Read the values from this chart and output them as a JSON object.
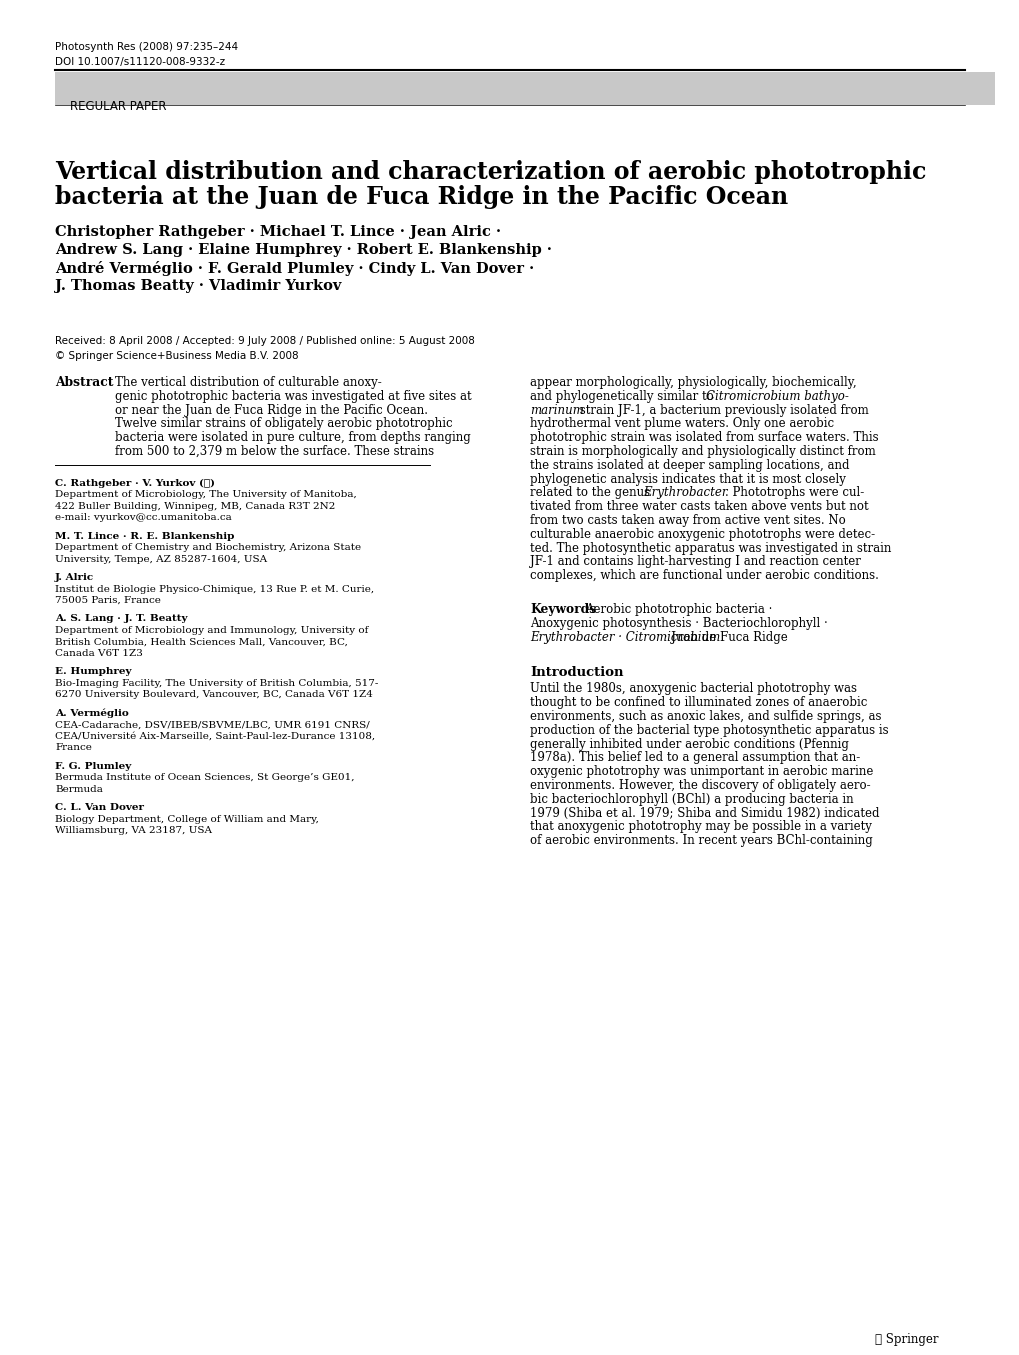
{
  "journal_line1": "Photosynth Res (2008) 97:235–244",
  "journal_line2": "DOI 10.1007/s11120-008-9332-z",
  "section_label": "REGULAR PAPER",
  "title_line1": "Vertical distribution and characterization of aerobic phototrophic",
  "title_line2": "bacteria at the Juan de Fuca Ridge in the Pacific Ocean",
  "authors_line1": "Christopher Rathgeber · Michael T. Lince · Jean Alric ·",
  "authors_line2": "Andrew S. Lang · Elaine Humphrey · Robert E. Blankenship ·",
  "authors_line3": "André Verméglio · F. Gerald Plumley · Cindy L. Van Dover ·",
  "authors_line4": "J. Thomas Beatty · Vladimir Yurkov",
  "received_line": "Received: 8 April 2008 / Accepted: 9 July 2008 / Published online: 5 August 2008",
  "copyright_line": "© Springer Science+Business Media B.V. 2008",
  "abs_left_lines": [
    "The vertical distribution of culturable anoxy-",
    "genic phototrophic bacteria was investigated at five sites at",
    "or near the Juan de Fuca Ridge in the Pacific Ocean.",
    "Twelve similar strains of obligately aerobic phototrophic",
    "bacteria were isolated in pure culture, from depths ranging",
    "from 500 to 2,379 m below the surface. These strains"
  ],
  "abs_right_lines": [
    "appear morphologically, physiologically, biochemically,",
    "and phylogenetically similar to ",
    " bathyo-",
    " strain JF-1, a bacterium previously isolated from",
    "hydrothermal vent plume waters. Only one aerobic",
    "phototrophic strain was isolated from surface waters. This",
    "strain is morphologically and physiologically distinct from",
    "the strains isolated at deeper sampling locations, and",
    "phylogenetic analysis indicates that it is most closely",
    "related to the genus ",
    ". Phototrophs were cul-",
    "tivated from three water casts taken above vents but not",
    "from two casts taken away from active vent sites. No",
    "culturable anaerobic anoxygenic phototrophs were detec-",
    "ted. The photosynthetic apparatus was investigated in strain",
    "JF-1 and contains light-harvesting I and reaction center",
    "complexes, which are functional under aerobic conditions."
  ],
  "fn1_name": "C. Rathgeber · V. Yurkov (✉)",
  "fn1_dept": "Department of Microbiology, The University of Manitoba,",
  "fn1_addr1": "422 Buller Building, Winnipeg, MB, Canada R3T 2N2",
  "fn1_email": "e-mail: vyurkov@cc.umanitoba.ca",
  "fn2_name": "M. T. Lince · R. E. Blankenship",
  "fn2_dept": "Department of Chemistry and Biochemistry, Arizona State",
  "fn2_addr1": "University, Tempe, AZ 85287-1604, USA",
  "fn3_name": "J. Alric",
  "fn3_dept": "Institut de Biologie Physico-Chimique, 13 Rue P. et M. Curie,",
  "fn3_addr1": "75005 Paris, France",
  "fn4_name": "A. S. Lang · J. T. Beatty",
  "fn4_dept": "Department of Microbiology and Immunology, University of",
  "fn4_addr1": "British Columbia, Health Sciences Mall, Vancouver, BC,",
  "fn4_addr2": "Canada V6T 1Z3",
  "fn5_name": "E. Humphrey",
  "fn5_dept": "Bio-Imaging Facility, The University of British Columbia, 517-",
  "fn5_addr1": "6270 University Boulevard, Vancouver, BC, Canada V6T 1Z4",
  "fn6_name": "A. Verméglio",
  "fn6_dept": "CEA-Cadarache, DSV/IBEB/SBVME/LBC, UMR 6191 CNRS/",
  "fn6_addr1": "CEA/Université Aix-Marseille, Saint-Paul-lez-Durance 13108,",
  "fn6_addr2": "France",
  "fn7_name": "F. G. Plumley",
  "fn7_dept": "Bermuda Institute of Ocean Sciences, St George’s GE01,",
  "fn7_addr1": "Bermuda",
  "fn8_name": "C. L. Van Dover",
  "fn8_dept": "Biology Department, College of William and Mary,",
  "fn8_addr1": "Williamsburg, VA 23187, USA",
  "kw_label": "Keywords",
  "kw_line1": "Aerobic phototrophic bacteria ·",
  "kw_line2": "Anoxygenic photosynthesis · Bacteriochlorophyll ·",
  "kw_line3_italic": "Erythrobacter · Citromicrobium",
  "kw_line3_normal": " · Juan de Fuca Ridge",
  "intro_header": "Introduction",
  "intro_lines": [
    "Until the 1980s, anoxygenic bacterial phototrophy was",
    "thought to be confined to illuminated zones of anaerobic",
    "environments, such as anoxic lakes, and sulfide springs, as",
    "production of the bacterial type photosynthetic apparatus is",
    "generally inhibited under aerobic conditions (Pfennig",
    "1978a). This belief led to a general assumption that an-",
    "oxygenic phototrophy was unimportant in aerobic marine",
    "environments. However, the discovery of obligately aero-",
    "bic bacteriochlorophyll (BChl) a producing bacteria in",
    "1979 (Shiba et al. 1979; Shiba and Simidu 1982) indicated",
    "that anoxygenic phototrophy may be possible in a variety",
    "of aerobic environments. In recent years BChl-containing"
  ],
  "springer_text": "⑥ Springer",
  "section_bg": "#c8c8c8",
  "bg_color": "#ffffff"
}
